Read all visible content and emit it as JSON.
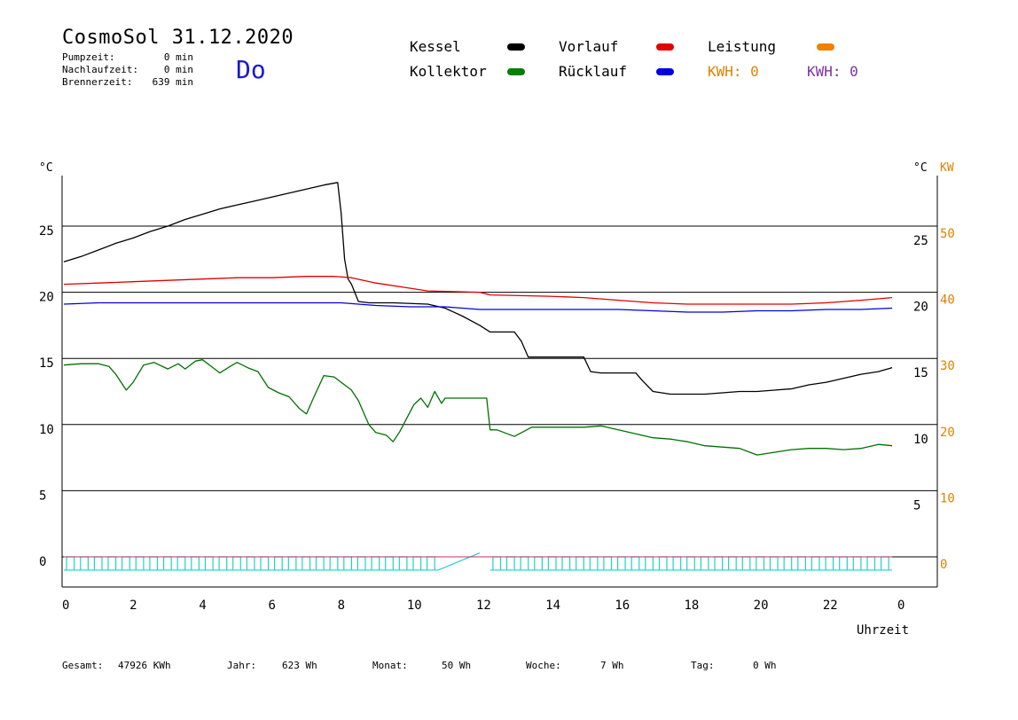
{
  "header": {
    "title": "CosmoSol 31.12.2020",
    "day": "Do",
    "stats": [
      {
        "label": "Pumpzeit:",
        "value": "0 min"
      },
      {
        "label": "Nachlaufzeit:",
        "value": "0 min"
      },
      {
        "label": "Brennerzeit:",
        "value": "639 min"
      }
    ]
  },
  "legend": [
    {
      "label": "Kessel",
      "color": "#000000",
      "col": 0,
      "row": 0
    },
    {
      "label": "Kollektor",
      "color": "#008000",
      "col": 0,
      "row": 1
    },
    {
      "label": "Vorlauf",
      "color": "#e00000",
      "col": 1,
      "row": 0
    },
    {
      "label": "Rücklauf",
      "color": "#0000e0",
      "col": 1,
      "row": 1
    },
    {
      "label": "Leistung",
      "color": "#f08000",
      "col": 2,
      "row": 0
    }
  ],
  "kwh": [
    {
      "text": "KWH: 0",
      "color": "#e08000"
    },
    {
      "text": "KWH: 0",
      "color": "#8030a0"
    }
  ],
  "footer": [
    {
      "label": "Gesamt:",
      "value": "47926 KWh"
    },
    {
      "label": "Jahr:",
      "value": "623 Wh"
    },
    {
      "label": "Monat:",
      "value": "50 Wh"
    },
    {
      "label": "Woche:",
      "value": "7 Wh"
    },
    {
      "label": "Tag:",
      "value": "0 Wh"
    }
  ],
  "chart_data": {
    "type": "line",
    "xlabel": "Uhrzeit",
    "ylabel_left": "°C",
    "ylabel_right": "°C",
    "ylabel_right2": "KW",
    "x_ticks": [
      "0",
      "2",
      "4",
      "6",
      "8",
      "10",
      "12",
      "14",
      "16",
      "18",
      "20",
      "22",
      "0"
    ],
    "y_ticks_left": [
      "25",
      "20",
      "15",
      "10",
      "5",
      "0"
    ],
    "y_ticks_right": [
      "25",
      "20",
      "15",
      "10",
      "5"
    ],
    "y_ticks_kw": [
      "50",
      "40",
      "30",
      "20",
      "10",
      "0"
    ],
    "xlim": [
      0,
      24
    ],
    "ylim": [
      -2,
      29
    ],
    "grid_y": [
      25,
      20,
      15,
      10,
      5,
      0
    ],
    "series": [
      {
        "name": "Kessel",
        "color": "#000000",
        "points": [
          [
            0,
            22.3
          ],
          [
            0.5,
            22.7
          ],
          [
            1,
            23.2
          ],
          [
            1.5,
            23.7
          ],
          [
            2,
            24.1
          ],
          [
            2.5,
            24.6
          ],
          [
            3,
            25.0
          ],
          [
            3.5,
            25.5
          ],
          [
            4,
            25.9
          ],
          [
            4.5,
            26.3
          ],
          [
            5,
            26.6
          ],
          [
            5.5,
            26.9
          ],
          [
            6,
            27.2
          ],
          [
            6.5,
            27.5
          ],
          [
            7,
            27.8
          ],
          [
            7.5,
            28.1
          ],
          [
            7.9,
            28.3
          ],
          [
            8.0,
            26.0
          ],
          [
            8.1,
            22.5
          ],
          [
            8.2,
            21.0
          ],
          [
            8.3,
            20.6
          ],
          [
            8.5,
            19.3
          ],
          [
            8.8,
            19.2
          ],
          [
            9.5,
            19.2
          ],
          [
            10.5,
            19.1
          ],
          [
            11,
            18.8
          ],
          [
            11.5,
            18.2
          ],
          [
            12,
            17.5
          ],
          [
            12.3,
            17.0
          ],
          [
            12.7,
            17.0
          ],
          [
            13.0,
            17.0
          ],
          [
            13.2,
            16.3
          ],
          [
            13.4,
            15.1
          ],
          [
            14,
            15.1
          ],
          [
            15,
            15.1
          ],
          [
            15.2,
            14.0
          ],
          [
            15.5,
            13.9
          ],
          [
            16,
            13.9
          ],
          [
            16.5,
            13.9
          ],
          [
            16.7,
            13.3
          ],
          [
            17,
            12.5
          ],
          [
            17.5,
            12.3
          ],
          [
            18,
            12.3
          ],
          [
            18.5,
            12.3
          ],
          [
            19,
            12.4
          ],
          [
            19.5,
            12.5
          ],
          [
            20,
            12.5
          ],
          [
            20.5,
            12.6
          ],
          [
            21,
            12.7
          ],
          [
            21.5,
            13.0
          ],
          [
            22,
            13.2
          ],
          [
            22.5,
            13.5
          ],
          [
            23,
            13.8
          ],
          [
            23.5,
            14.0
          ],
          [
            23.9,
            14.3
          ]
        ]
      },
      {
        "name": "Vorlauf",
        "color": "#e00000",
        "points": [
          [
            0,
            20.6
          ],
          [
            1,
            20.7
          ],
          [
            2,
            20.8
          ],
          [
            3,
            20.9
          ],
          [
            4,
            21.0
          ],
          [
            5,
            21.1
          ],
          [
            6,
            21.1
          ],
          [
            7,
            21.2
          ],
          [
            7.8,
            21.2
          ],
          [
            8.3,
            21.1
          ],
          [
            9,
            20.7
          ],
          [
            10,
            20.3
          ],
          [
            10.5,
            20.1
          ],
          [
            12,
            20.0
          ],
          [
            12.3,
            19.8
          ],
          [
            14,
            19.7
          ],
          [
            15,
            19.6
          ],
          [
            16,
            19.4
          ],
          [
            17,
            19.2
          ],
          [
            18,
            19.1
          ],
          [
            19,
            19.1
          ],
          [
            20,
            19.1
          ],
          [
            21,
            19.1
          ],
          [
            22,
            19.2
          ],
          [
            23,
            19.4
          ],
          [
            23.9,
            19.6
          ]
        ]
      },
      {
        "name": "Rücklauf",
        "color": "#0000e0",
        "points": [
          [
            0,
            19.1
          ],
          [
            1,
            19.2
          ],
          [
            2,
            19.2
          ],
          [
            3,
            19.2
          ],
          [
            4,
            19.2
          ],
          [
            5,
            19.2
          ],
          [
            6,
            19.2
          ],
          [
            7,
            19.2
          ],
          [
            8,
            19.2
          ],
          [
            8.5,
            19.1
          ],
          [
            9,
            19.0
          ],
          [
            10,
            18.9
          ],
          [
            11,
            18.9
          ],
          [
            12,
            18.7
          ],
          [
            12.3,
            18.7
          ],
          [
            13,
            18.7
          ],
          [
            14,
            18.7
          ],
          [
            15,
            18.7
          ],
          [
            16,
            18.7
          ],
          [
            17,
            18.6
          ],
          [
            18,
            18.5
          ],
          [
            19,
            18.5
          ],
          [
            20,
            18.6
          ],
          [
            21,
            18.6
          ],
          [
            22,
            18.7
          ],
          [
            23,
            18.7
          ],
          [
            23.9,
            18.8
          ]
        ]
      },
      {
        "name": "Kollektor",
        "color": "#007000",
        "points": [
          [
            0,
            14.5
          ],
          [
            0.5,
            14.6
          ],
          [
            1,
            14.6
          ],
          [
            1.3,
            14.4
          ],
          [
            1.5,
            13.8
          ],
          [
            1.8,
            12.6
          ],
          [
            2,
            13.2
          ],
          [
            2.3,
            14.5
          ],
          [
            2.6,
            14.7
          ],
          [
            3,
            14.2
          ],
          [
            3.3,
            14.6
          ],
          [
            3.5,
            14.2
          ],
          [
            3.8,
            14.8
          ],
          [
            4,
            14.9
          ],
          [
            4.3,
            14.3
          ],
          [
            4.5,
            13.9
          ],
          [
            4.8,
            14.4
          ],
          [
            5,
            14.7
          ],
          [
            5.3,
            14.3
          ],
          [
            5.6,
            14.0
          ],
          [
            5.9,
            12.8
          ],
          [
            6.2,
            12.4
          ],
          [
            6.5,
            12.1
          ],
          [
            6.8,
            11.2
          ],
          [
            7.0,
            10.8
          ],
          [
            7.2,
            12.0
          ],
          [
            7.5,
            13.7
          ],
          [
            7.8,
            13.6
          ],
          [
            8.0,
            13.2
          ],
          [
            8.3,
            12.6
          ],
          [
            8.5,
            11.8
          ],
          [
            8.8,
            10.0
          ],
          [
            9.0,
            9.4
          ],
          [
            9.3,
            9.2
          ],
          [
            9.5,
            8.7
          ],
          [
            9.7,
            9.5
          ],
          [
            9.9,
            10.5
          ],
          [
            10.1,
            11.5
          ],
          [
            10.3,
            12.0
          ],
          [
            10.5,
            11.3
          ],
          [
            10.7,
            12.5
          ],
          [
            10.9,
            11.6
          ],
          [
            11.0,
            12.0
          ],
          [
            12.2,
            12.0
          ],
          [
            12.3,
            9.6
          ],
          [
            12.5,
            9.6
          ],
          [
            13,
            9.1
          ],
          [
            13.5,
            9.8
          ],
          [
            14,
            9.8
          ],
          [
            15,
            9.8
          ],
          [
            15.5,
            9.9
          ],
          [
            16,
            9.6
          ],
          [
            16.5,
            9.3
          ],
          [
            17,
            9.0
          ],
          [
            17.5,
            8.9
          ],
          [
            18,
            8.7
          ],
          [
            18.5,
            8.4
          ],
          [
            19,
            8.3
          ],
          [
            19.5,
            8.2
          ],
          [
            20,
            7.7
          ],
          [
            20.5,
            7.9
          ],
          [
            21,
            8.1
          ],
          [
            21.5,
            8.2
          ],
          [
            22,
            8.2
          ],
          [
            22.5,
            8.1
          ],
          [
            23,
            8.2
          ],
          [
            23.5,
            8.5
          ],
          [
            23.9,
            8.4
          ]
        ]
      }
    ],
    "pump_pulses": {
      "color": "#20d0d0",
      "segments": [
        [
          0,
          10.8
        ],
        [
          12.3,
          23.9
        ]
      ],
      "gap_ramp": [
        [
          10.8,
          0
        ],
        [
          12.0,
          0.5
        ]
      ]
    }
  }
}
